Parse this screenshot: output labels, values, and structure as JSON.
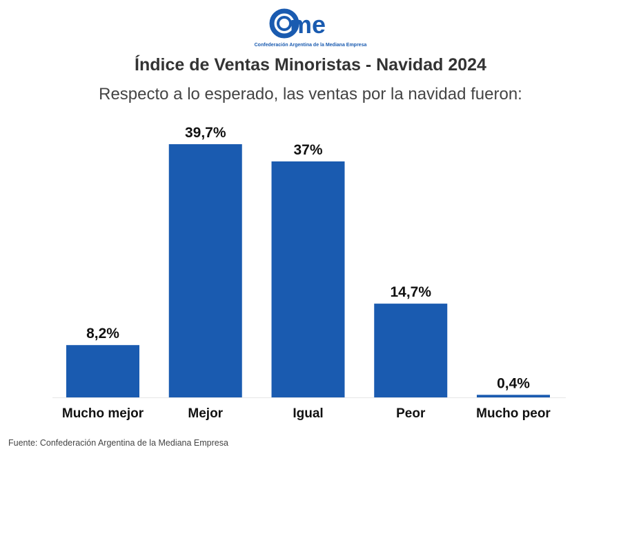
{
  "logo": {
    "text": "cme",
    "tagline": "Confederación Argentina de la Mediana Empresa"
  },
  "chart_data": {
    "type": "bar",
    "title": "Índice de Ventas Minoristas - Navidad 2024",
    "subtitle": "Respecto a lo esperado, las ventas por la navidad fueron:",
    "categories": [
      "Mucho mejor",
      "Mejor",
      "Igual",
      "Peor",
      "Mucho peor"
    ],
    "values": [
      8.2,
      39.7,
      37,
      14.7,
      0.4
    ],
    "data_labels": [
      "8,2%",
      "39,7%",
      "37%",
      "14,7%",
      "0,4%"
    ],
    "unit": "%",
    "ylim": [
      0,
      39.7
    ],
    "grid": false,
    "color": "#1a5bb0",
    "source": "Fuente: Confederación Argentina de la Mediana Empresa"
  }
}
